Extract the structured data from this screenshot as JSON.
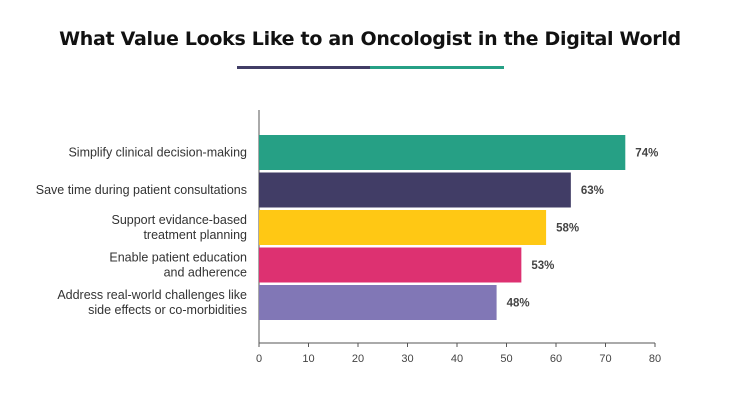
{
  "chart_data": {
    "type": "bar",
    "orientation": "horizontal",
    "title": "What Value Looks Like to an Oncologist in the Digital World",
    "categories": [
      [
        "Simplify clinical decision-making"
      ],
      [
        "Save time during patient consultations"
      ],
      [
        "Support evidance-based",
        "treatment planning"
      ],
      [
        "Enable patient education",
        "and adherence"
      ],
      [
        "Address real-world challenges like",
        "side effects or co-morbidities"
      ]
    ],
    "values": [
      74,
      63,
      58,
      53,
      48
    ],
    "value_labels": [
      "74%",
      "63%",
      "58%",
      "53%",
      "48%"
    ],
    "bar_colors": [
      "#26a085",
      "#413d66",
      "#ffc814",
      "#dd3171",
      "#8177b6"
    ],
    "xlim": [
      0,
      80
    ],
    "xticks": [
      0,
      10,
      20,
      30,
      40,
      50,
      60,
      70,
      80
    ],
    "xlabel": "",
    "ylabel": "",
    "grid": false,
    "legend": "none"
  },
  "accent_colors": [
    "#413d66",
    "#26a085"
  ]
}
